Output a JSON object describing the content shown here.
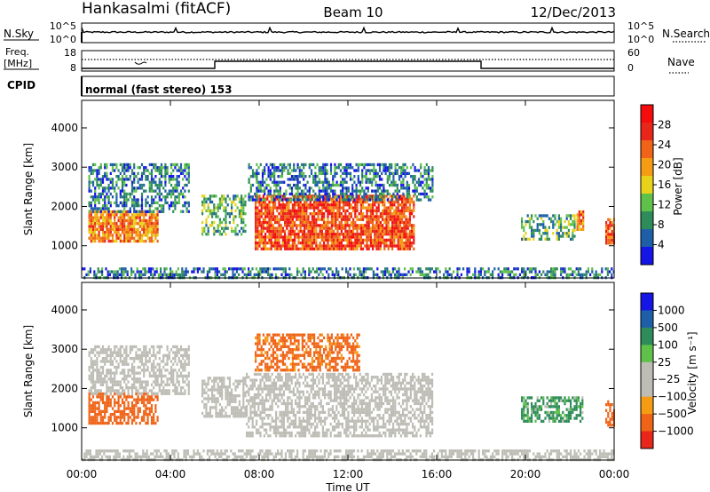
{
  "header": {
    "station": "Hankasalmi (fitACF)",
    "beam": "Beam 10",
    "date": "12/Dec/2013"
  },
  "strip_panels": {
    "nsky_label": "N.Sky",
    "nsky_ticks": [
      "10^5",
      "10^0"
    ],
    "nsearch_label": "N.Search",
    "nsearch_ticks": [
      "10^5",
      "10^0"
    ],
    "freq_label_1": "Freq.",
    "freq_label_2": "[MHz]",
    "freq_ticks": [
      "18",
      "8"
    ],
    "nave_label": "Nave",
    "nave_ticks": [
      "60",
      "0"
    ],
    "cpid_label": "CPID",
    "cpid_text": "normal (fast stereo) 153"
  },
  "colors": {
    "power": [
      "#1515e6",
      "#1e5fa8",
      "#2e8c5a",
      "#5fc04a",
      "#e8d21a",
      "#f59c14",
      "#ef6418",
      "#e8261a",
      "#f50c0c"
    ],
    "velocity": [
      "#e8261a",
      "#ef6418",
      "#f59c14",
      "#bdbdb5",
      "#bdbdb5",
      "#5fc04a",
      "#2e8c5a",
      "#1e5fa8",
      "#1515e6"
    ],
    "ground_scatter": "#bdbdb5"
  },
  "chart_data": [
    {
      "type": "heatmap",
      "name": "power-panel",
      "xlabel": "",
      "ylabel": "Slant Range [km]",
      "x_range_hours": [
        0,
        24
      ],
      "ylim_km": [
        180,
        4700
      ],
      "y_ticks": [
        "1000",
        "2000",
        "3000",
        "4000"
      ],
      "colorbar_label": "Power [dB]",
      "colorbar_ticks": [
        "4",
        "8",
        "12",
        "16",
        "20",
        "24",
        "28"
      ],
      "colorbar_range": [
        0,
        32
      ],
      "scatter_regions": [
        {
          "t0": 0.3,
          "t1": 3.4,
          "r0": 1100,
          "r1": 1900,
          "level": 24
        },
        {
          "t0": 0.3,
          "t1": 4.8,
          "r0": 1900,
          "r1": 3100,
          "level": 8
        },
        {
          "t0": 5.4,
          "t1": 7.4,
          "r0": 1300,
          "r1": 2300,
          "level": 12
        },
        {
          "t0": 7.8,
          "t1": 15.0,
          "r0": 900,
          "r1": 2300,
          "level": 28
        },
        {
          "t0": 7.5,
          "t1": 15.8,
          "r0": 2200,
          "r1": 3100,
          "level": 8
        },
        {
          "t0": 19.8,
          "t1": 22.2,
          "r0": 1200,
          "r1": 1800,
          "level": 12
        },
        {
          "t0": 22.3,
          "t1": 22.6,
          "r0": 1400,
          "r1": 1900,
          "level": 24
        },
        {
          "t0": 23.6,
          "t1": 24.0,
          "r0": 1100,
          "r1": 1700,
          "level": 28
        },
        {
          "t0": 0.0,
          "t1": 24.0,
          "r0": 200,
          "r1": 450,
          "level": 8
        }
      ]
    },
    {
      "type": "heatmap",
      "name": "velocity-panel",
      "xlabel": "Time UT",
      "ylabel": "Slant Range [km]",
      "x_range_hours": [
        0,
        24
      ],
      "x_ticks": [
        "00:00",
        "04:00",
        "08:00",
        "12:00",
        "16:00",
        "20:00",
        "00:00"
      ],
      "ylim_km": [
        180,
        4700
      ],
      "y_ticks": [
        "1000",
        "2000",
        "3000",
        "4000"
      ],
      "colorbar_label": "Velocity [m s⁻¹]",
      "colorbar_ticks": [
        "1000",
        "500",
        "100",
        "25",
        "−25",
        "−100",
        "−500",
        "−1000"
      ],
      "scatter_regions": [
        {
          "t0": 0.3,
          "t1": 3.4,
          "r0": 1100,
          "r1": 1900,
          "vel": -300
        },
        {
          "t0": 0.3,
          "t1": 4.8,
          "r0": 1900,
          "r1": 3100,
          "vel": 0
        },
        {
          "t0": 5.4,
          "t1": 7.4,
          "r0": 1300,
          "r1": 2300,
          "vel": 0
        },
        {
          "t0": 7.4,
          "t1": 15.8,
          "r0": 800,
          "r1": 2400,
          "vel": 0
        },
        {
          "t0": 7.8,
          "t1": 12.5,
          "r0": 2500,
          "r1": 3400,
          "vel": -250
        },
        {
          "t0": 19.8,
          "t1": 22.6,
          "r0": 1200,
          "r1": 1800,
          "vel": 200
        },
        {
          "t0": 23.6,
          "t1": 24.0,
          "r0": 1100,
          "r1": 1700,
          "vel": -300
        },
        {
          "t0": 0.0,
          "t1": 24.0,
          "r0": 200,
          "r1": 450,
          "vel": 0
        }
      ]
    }
  ]
}
